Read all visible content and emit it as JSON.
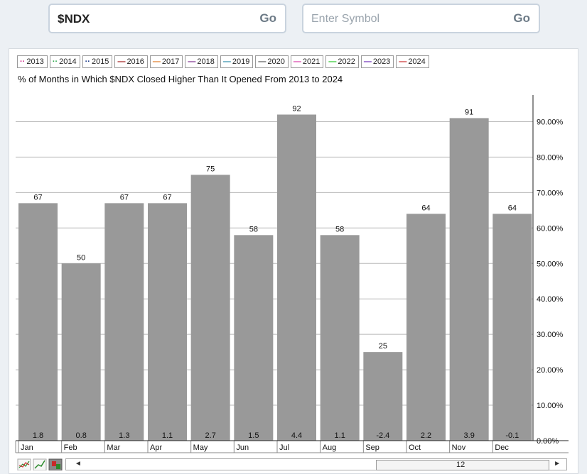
{
  "search": {
    "value": "$NDX",
    "go_label": "Go"
  },
  "search2": {
    "placeholder": "Enter Symbol",
    "go_label": "Go"
  },
  "legend": [
    {
      "label": "2013",
      "color": "#cc2a8a"
    },
    {
      "label": "2014",
      "color": "#2aa84a"
    },
    {
      "label": "2015",
      "color": "#1a3a8a"
    },
    {
      "label": "2016",
      "color": "#a01818"
    },
    {
      "label": "2017",
      "color": "#e07820"
    },
    {
      "label": "2018",
      "color": "#7a2a8a"
    },
    {
      "label": "2019",
      "color": "#2a8aa8"
    },
    {
      "label": "2020",
      "color": "#555555"
    },
    {
      "label": "2021",
      "color": "#d83aa8"
    },
    {
      "label": "2022",
      "color": "#28c828"
    },
    {
      "label": "2023",
      "color": "#6a2ab8"
    },
    {
      "label": "2024",
      "color": "#c82828"
    }
  ],
  "scrollbar": {
    "value": "12",
    "left_arrow": "◄",
    "right_arrow": "►"
  },
  "chart_data": {
    "type": "bar",
    "title": "% of Months in Which $NDX Closed Higher Than It Opened From 2013 to 2024",
    "categories": [
      "Jan",
      "Feb",
      "Mar",
      "Apr",
      "May",
      "Jun",
      "Jul",
      "Aug",
      "Sep",
      "Oct",
      "Nov",
      "Dec"
    ],
    "values": [
      67,
      50,
      67,
      67,
      75,
      58,
      92,
      58,
      25,
      64,
      91,
      64
    ],
    "avg_change": [
      "1.8",
      "0.8",
      "1.3",
      "1.1",
      "2.7",
      "1.5",
      "4.4",
      "1.1",
      "-2.4",
      "2.2",
      "3.9",
      "-0.1"
    ],
    "ylim": [
      0,
      100
    ],
    "yticks": [
      "0.00%",
      "10.00%",
      "20.00%",
      "30.00%",
      "40.00%",
      "50.00%",
      "60.00%",
      "70.00%",
      "80.00%",
      "90.00%"
    ],
    "bar_color": "#999999",
    "grid": true,
    "y_axis_position": "right"
  }
}
